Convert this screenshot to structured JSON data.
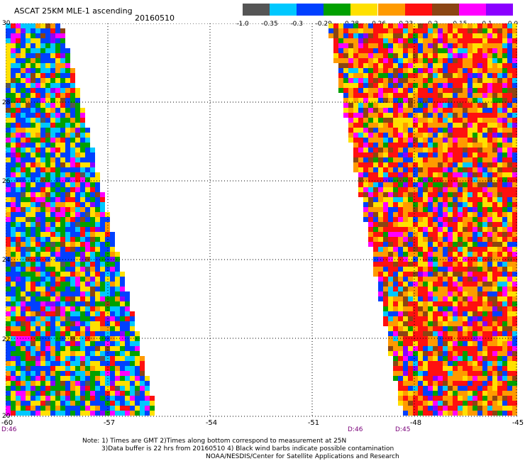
{
  "header": {
    "title": "ASCAT 25KM MLE-1 ascending",
    "date": "20160510"
  },
  "legend": {
    "colors": [
      "#555555",
      "#00c8ff",
      "#0040ff",
      "#00a000",
      "#ffe000",
      "#ff9a00",
      "#ff1010",
      "#8b4513",
      "#ff00ff",
      "#8a00ff"
    ],
    "ticks": [
      "-1.0",
      "-0.35",
      "-0.3",
      "-0.29",
      "-0.28",
      "-0.26",
      "-0.23",
      "-0.2",
      "-0.15",
      "-0.1",
      "0.0"
    ]
  },
  "axes": {
    "y_labels": [
      "30",
      "28",
      "26",
      "24",
      "22",
      "20"
    ],
    "x_labels": [
      "-60",
      "-57",
      "-54",
      "-51",
      "-48",
      "-45"
    ]
  },
  "times": [
    "D:46",
    "D:46",
    "D:45"
  ],
  "notes": [
    "Note: 1) Times are GMT 2)Times along bottom correspond to measurement at 25N",
    "3)Data buffer is 22 hrs from 20160510 4) Black wind barbs indicate possible contamination",
    "NOAA/NESDIS/Center for Satellite Applications and Research"
  ]
}
